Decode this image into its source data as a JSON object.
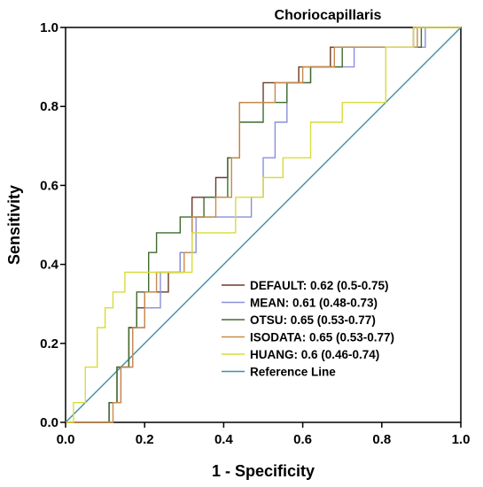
{
  "chart_data": {
    "type": "line",
    "title": "Choriocapillaris",
    "xlabel": "1 - Specificity",
    "ylabel": "Sensitivity",
    "xlim": [
      0,
      1
    ],
    "ylim": [
      0,
      1
    ],
    "x_ticks": [
      "0.0",
      "0.2",
      "0.4",
      "0.6",
      "0.8",
      "1.0"
    ],
    "y_ticks": [
      "0.0",
      "0.2",
      "0.4",
      "0.6",
      "0.8",
      "1.0"
    ],
    "grid": false,
    "legend_position": "bottom-right",
    "series": [
      {
        "name": "DEFAULT: 0.62 (0.5-0.75)",
        "color": "#6b3a2a",
        "points": [
          [
            0,
            0
          ],
          [
            0.11,
            0
          ],
          [
            0.11,
            0.05
          ],
          [
            0.13,
            0.05
          ],
          [
            0.13,
            0.14
          ],
          [
            0.16,
            0.14
          ],
          [
            0.16,
            0.24
          ],
          [
            0.18,
            0.24
          ],
          [
            0.18,
            0.29
          ],
          [
            0.2,
            0.29
          ],
          [
            0.2,
            0.33
          ],
          [
            0.26,
            0.33
          ],
          [
            0.26,
            0.38
          ],
          [
            0.29,
            0.38
          ],
          [
            0.29,
            0.43
          ],
          [
            0.32,
            0.43
          ],
          [
            0.32,
            0.57
          ],
          [
            0.38,
            0.57
          ],
          [
            0.38,
            0.62
          ],
          [
            0.41,
            0.62
          ],
          [
            0.41,
            0.67
          ],
          [
            0.44,
            0.67
          ],
          [
            0.44,
            0.81
          ],
          [
            0.5,
            0.81
          ],
          [
            0.5,
            0.86
          ],
          [
            0.59,
            0.86
          ],
          [
            0.59,
            0.9
          ],
          [
            0.67,
            0.9
          ],
          [
            0.67,
            0.95
          ],
          [
            0.88,
            0.95
          ],
          [
            0.88,
            1.0
          ],
          [
            1.0,
            1.0
          ]
        ]
      },
      {
        "name": "MEAN: 0.61 (0.48-0.73)",
        "color": "#8a8fd8",
        "points": [
          [
            0,
            0
          ],
          [
            0.11,
            0
          ],
          [
            0.11,
            0.05
          ],
          [
            0.14,
            0.05
          ],
          [
            0.14,
            0.14
          ],
          [
            0.17,
            0.14
          ],
          [
            0.17,
            0.24
          ],
          [
            0.2,
            0.24
          ],
          [
            0.2,
            0.29
          ],
          [
            0.24,
            0.29
          ],
          [
            0.24,
            0.38
          ],
          [
            0.29,
            0.38
          ],
          [
            0.29,
            0.43
          ],
          [
            0.33,
            0.43
          ],
          [
            0.33,
            0.52
          ],
          [
            0.47,
            0.52
          ],
          [
            0.47,
            0.57
          ],
          [
            0.5,
            0.57
          ],
          [
            0.5,
            0.67
          ],
          [
            0.53,
            0.67
          ],
          [
            0.53,
            0.76
          ],
          [
            0.56,
            0.76
          ],
          [
            0.56,
            0.86
          ],
          [
            0.62,
            0.86
          ],
          [
            0.62,
            0.9
          ],
          [
            0.73,
            0.9
          ],
          [
            0.73,
            0.95
          ],
          [
            0.91,
            0.95
          ],
          [
            0.91,
            1.0
          ],
          [
            1.0,
            1.0
          ]
        ]
      },
      {
        "name": "OTSU: 0.65 (0.53-0.77)",
        "color": "#3f6b2e",
        "points": [
          [
            0,
            0
          ],
          [
            0.11,
            0
          ],
          [
            0.11,
            0.05
          ],
          [
            0.13,
            0.05
          ],
          [
            0.13,
            0.14
          ],
          [
            0.16,
            0.14
          ],
          [
            0.16,
            0.24
          ],
          [
            0.18,
            0.24
          ],
          [
            0.18,
            0.33
          ],
          [
            0.21,
            0.33
          ],
          [
            0.21,
            0.43
          ],
          [
            0.23,
            0.43
          ],
          [
            0.23,
            0.48
          ],
          [
            0.29,
            0.48
          ],
          [
            0.29,
            0.52
          ],
          [
            0.35,
            0.52
          ],
          [
            0.35,
            0.57
          ],
          [
            0.41,
            0.57
          ],
          [
            0.41,
            0.67
          ],
          [
            0.44,
            0.67
          ],
          [
            0.44,
            0.76
          ],
          [
            0.5,
            0.76
          ],
          [
            0.5,
            0.81
          ],
          [
            0.56,
            0.81
          ],
          [
            0.56,
            0.86
          ],
          [
            0.62,
            0.86
          ],
          [
            0.62,
            0.9
          ],
          [
            0.7,
            0.9
          ],
          [
            0.7,
            0.95
          ],
          [
            0.9,
            0.95
          ],
          [
            0.9,
            1.0
          ],
          [
            1.0,
            1.0
          ]
        ]
      },
      {
        "name": "ISODATA: 0.65 (0.53-0.77)",
        "color": "#c98a4a",
        "points": [
          [
            0,
            0
          ],
          [
            0.12,
            0
          ],
          [
            0.12,
            0.05
          ],
          [
            0.14,
            0.05
          ],
          [
            0.14,
            0.14
          ],
          [
            0.17,
            0.14
          ],
          [
            0.17,
            0.24
          ],
          [
            0.2,
            0.24
          ],
          [
            0.2,
            0.33
          ],
          [
            0.23,
            0.33
          ],
          [
            0.23,
            0.38
          ],
          [
            0.3,
            0.38
          ],
          [
            0.3,
            0.43
          ],
          [
            0.32,
            0.43
          ],
          [
            0.32,
            0.52
          ],
          [
            0.38,
            0.52
          ],
          [
            0.38,
            0.57
          ],
          [
            0.42,
            0.57
          ],
          [
            0.42,
            0.67
          ],
          [
            0.44,
            0.67
          ],
          [
            0.44,
            0.81
          ],
          [
            0.53,
            0.81
          ],
          [
            0.53,
            0.86
          ],
          [
            0.6,
            0.86
          ],
          [
            0.6,
            0.9
          ],
          [
            0.68,
            0.9
          ],
          [
            0.68,
            0.95
          ],
          [
            0.89,
            0.95
          ],
          [
            0.89,
            1.0
          ],
          [
            1.0,
            1.0
          ]
        ]
      },
      {
        "name": "HUANG: 0.6 (0.46-0.74)",
        "color": "#d8dc3a",
        "points": [
          [
            0,
            0
          ],
          [
            0.02,
            0
          ],
          [
            0.02,
            0.05
          ],
          [
            0.05,
            0.05
          ],
          [
            0.05,
            0.14
          ],
          [
            0.08,
            0.14
          ],
          [
            0.08,
            0.24
          ],
          [
            0.1,
            0.24
          ],
          [
            0.1,
            0.29
          ],
          [
            0.12,
            0.29
          ],
          [
            0.12,
            0.33
          ],
          [
            0.15,
            0.33
          ],
          [
            0.15,
            0.38
          ],
          [
            0.32,
            0.38
          ],
          [
            0.32,
            0.48
          ],
          [
            0.43,
            0.48
          ],
          [
            0.43,
            0.57
          ],
          [
            0.5,
            0.57
          ],
          [
            0.5,
            0.62
          ],
          [
            0.55,
            0.62
          ],
          [
            0.55,
            0.67
          ],
          [
            0.62,
            0.67
          ],
          [
            0.62,
            0.76
          ],
          [
            0.7,
            0.76
          ],
          [
            0.7,
            0.81
          ],
          [
            0.81,
            0.81
          ],
          [
            0.81,
            0.95
          ],
          [
            0.88,
            0.95
          ],
          [
            0.88,
            1.0
          ],
          [
            1.0,
            1.0
          ]
        ]
      },
      {
        "name": "Reference Line",
        "color": "#3e8fa8",
        "points": [
          [
            0,
            0
          ],
          [
            1,
            1
          ]
        ]
      }
    ]
  }
}
